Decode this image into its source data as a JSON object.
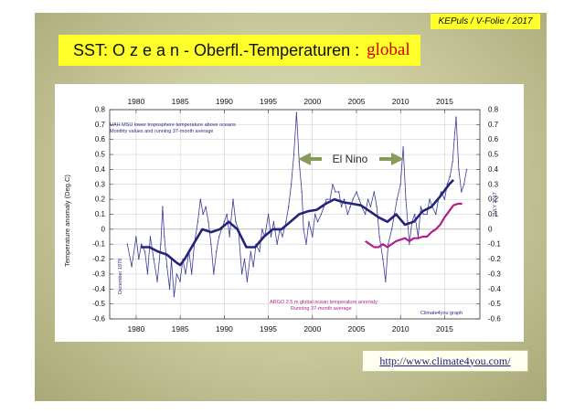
{
  "header_tag": "KEPuls / V-Folie / 2017",
  "title": {
    "main": "SST: O z e a n - Oberfl.-Temperaturen :",
    "highlight": "global"
  },
  "url": "http://www.climate4you.com/",
  "colors": {
    "slide_bg": "#c7c79a",
    "title_bg": "#ffff2a",
    "uah": "#2a2a8c",
    "argo": "#b0208c",
    "elnino_arrow": "#8a9a5a",
    "title_highlight": "#d40000"
  },
  "chart_data": {
    "type": "line",
    "xlim": [
      1977,
      2019
    ],
    "ylim": [
      -0.6,
      0.8
    ],
    "x_ticks": [
      1980,
      1985,
      1990,
      1995,
      2000,
      2005,
      2010,
      2015
    ],
    "x_tick_labels": [
      "1980",
      "1985",
      "1990",
      "1995",
      "2000",
      "2005",
      "2010",
      "2015"
    ],
    "y_ticks": [
      -0.6,
      -0.5,
      -0.4,
      -0.3,
      -0.2,
      -0.1,
      0,
      0.1,
      0.2,
      0.3,
      0.4,
      0.5,
      0.6,
      0.7,
      0.8
    ],
    "y_tick_labels": [
      "-0.6",
      "-0.5",
      "-0.4",
      "-0.3",
      "-0.2",
      "-0.1",
      "0",
      "0.1",
      "0.2",
      "0.3",
      "0.4",
      "0.5",
      "0.6",
      "0.7",
      "0.8"
    ],
    "ylabel": "Temperature anomaly (Deg.C)",
    "grid": true,
    "legend_text": [
      "UAH MSU lower troposphere temperature above oceans",
      "Monthly values and running 37-month average"
    ],
    "argo_label": [
      "ARGO 2.5 m global ocean temperature anomaly",
      "Running 37-month average"
    ],
    "credit": "Climate4you graph",
    "start_label": "December 1978",
    "end_label": "JULY 2017",
    "annotation": "El Nino",
    "series": [
      {
        "name": "UAH MSU lower troposphere temperature above oceans, monthly values",
        "style": "thin",
        "x": [
          1979.0,
          1979.5,
          1980.0,
          1980.3,
          1980.6,
          1981.0,
          1981.3,
          1981.6,
          1982.0,
          1982.4,
          1982.8,
          1983.0,
          1983.2,
          1983.5,
          1983.8,
          1984.0,
          1984.3,
          1984.6,
          1985.0,
          1985.3,
          1985.6,
          1986.0,
          1986.3,
          1986.6,
          1987.0,
          1987.3,
          1987.6,
          1987.9,
          1988.2,
          1988.5,
          1988.8,
          1989.1,
          1989.4,
          1989.7,
          1990.0,
          1990.3,
          1990.6,
          1991.0,
          1991.3,
          1991.6,
          1992.0,
          1992.3,
          1992.6,
          1993.0,
          1993.3,
          1993.6,
          1994.0,
          1994.3,
          1994.6,
          1995.0,
          1995.3,
          1995.6,
          1996.0,
          1996.3,
          1996.6,
          1997.0,
          1997.3,
          1997.6,
          1997.9,
          1998.2,
          1998.5,
          1998.8,
          1999.0,
          1999.3,
          1999.6,
          2000.0,
          2000.3,
          2000.6,
          2001.0,
          2001.3,
          2001.6,
          2002.0,
          2002.3,
          2002.6,
          2003.0,
          2003.3,
          2003.6,
          2004.0,
          2004.3,
          2004.6,
          2005.0,
          2005.3,
          2005.6,
          2006.0,
          2006.3,
          2006.6,
          2007.0,
          2007.3,
          2007.6,
          2008.0,
          2008.3,
          2008.6,
          2009.0,
          2009.3,
          2009.6,
          2010.0,
          2010.3,
          2010.6,
          2011.0,
          2011.3,
          2011.6,
          2012.0,
          2012.3,
          2012.6,
          2013.0,
          2013.3,
          2013.6,
          2014.0,
          2014.3,
          2014.6,
          2015.0,
          2015.3,
          2015.6,
          2015.9,
          2016.1,
          2016.3,
          2016.6,
          2016.9,
          2017.2,
          2017.5
        ],
        "y": [
          -0.1,
          -0.25,
          -0.05,
          -0.2,
          -0.1,
          -0.15,
          -0.3,
          -0.05,
          -0.2,
          -0.35,
          -0.1,
          0.15,
          -0.05,
          -0.25,
          -0.4,
          -0.2,
          -0.45,
          -0.3,
          -0.35,
          -0.2,
          -0.3,
          -0.15,
          -0.3,
          -0.1,
          0.05,
          0.2,
          0.1,
          0.15,
          0.05,
          -0.1,
          -0.3,
          -0.15,
          -0.05,
          0.0,
          0.05,
          0.1,
          -0.05,
          0.2,
          0.05,
          0.0,
          -0.3,
          -0.2,
          -0.35,
          -0.15,
          -0.25,
          -0.1,
          -0.15,
          0.0,
          -0.05,
          0.1,
          -0.05,
          0.05,
          -0.1,
          0.0,
          -0.05,
          0.05,
          0.15,
          0.3,
          0.5,
          0.78,
          0.45,
          0.25,
          0.0,
          -0.1,
          0.05,
          -0.05,
          0.1,
          0.05,
          0.1,
          0.15,
          0.2,
          0.2,
          0.3,
          0.25,
          0.25,
          0.15,
          0.2,
          0.1,
          0.15,
          0.2,
          0.25,
          0.2,
          0.15,
          0.1,
          0.2,
          0.15,
          0.25,
          0.15,
          -0.05,
          -0.2,
          -0.35,
          -0.1,
          0.0,
          0.1,
          0.2,
          0.3,
          0.55,
          0.2,
          -0.1,
          0.05,
          0.1,
          -0.05,
          0.15,
          0.1,
          0.1,
          0.2,
          0.15,
          0.1,
          0.2,
          0.25,
          0.2,
          0.3,
          0.35,
          0.45,
          0.6,
          0.75,
          0.4,
          0.25,
          0.3,
          0.4
        ]
      },
      {
        "name": "UAH running 37-month average",
        "style": "thick",
        "x": [
          1980.5,
          1981.5,
          1982.5,
          1983.5,
          1984.5,
          1985.0,
          1985.5,
          1986.5,
          1987.5,
          1988.5,
          1989.5,
          1990.5,
          1991.5,
          1992.5,
          1993.5,
          1994.5,
          1995.5,
          1996.5,
          1997.5,
          1998.5,
          1999.5,
          2000.5,
          2001.5,
          2002.5,
          2003.5,
          2004.5,
          2005.5,
          2006.5,
          2007.5,
          2008.5,
          2009.5,
          2010.5,
          2011.5,
          2012.5,
          2013.5,
          2014.5,
          2015.5,
          2016.0
        ],
        "y": [
          -0.12,
          -0.12,
          -0.15,
          -0.17,
          -0.22,
          -0.24,
          -0.2,
          -0.1,
          0.0,
          -0.02,
          0.0,
          0.05,
          0.0,
          -0.12,
          -0.12,
          -0.05,
          0.0,
          0.0,
          0.05,
          0.1,
          0.12,
          0.13,
          0.17,
          0.2,
          0.18,
          0.17,
          0.16,
          0.12,
          0.08,
          0.05,
          0.1,
          0.03,
          0.05,
          0.12,
          0.15,
          0.22,
          0.3,
          0.33
        ]
      },
      {
        "name": "ARGO 2.5 m global ocean temperature anomaly, running 37-month average",
        "style": "thick-magenta",
        "x": [
          2006.0,
          2006.5,
          2007.0,
          2007.5,
          2008.0,
          2008.5,
          2009.0,
          2009.5,
          2010.0,
          2010.5,
          2011.0,
          2011.5,
          2012.0,
          2012.5,
          2013.0,
          2013.5,
          2014.0,
          2014.5,
          2015.0,
          2015.5,
          2016.0,
          2016.5,
          2017.0
        ],
        "y": [
          -0.08,
          -0.1,
          -0.12,
          -0.12,
          -0.1,
          -0.12,
          -0.1,
          -0.08,
          -0.07,
          -0.06,
          -0.08,
          -0.06,
          -0.06,
          -0.05,
          -0.05,
          -0.02,
          0.0,
          0.03,
          0.08,
          0.12,
          0.16,
          0.17,
          0.17
        ]
      }
    ]
  }
}
